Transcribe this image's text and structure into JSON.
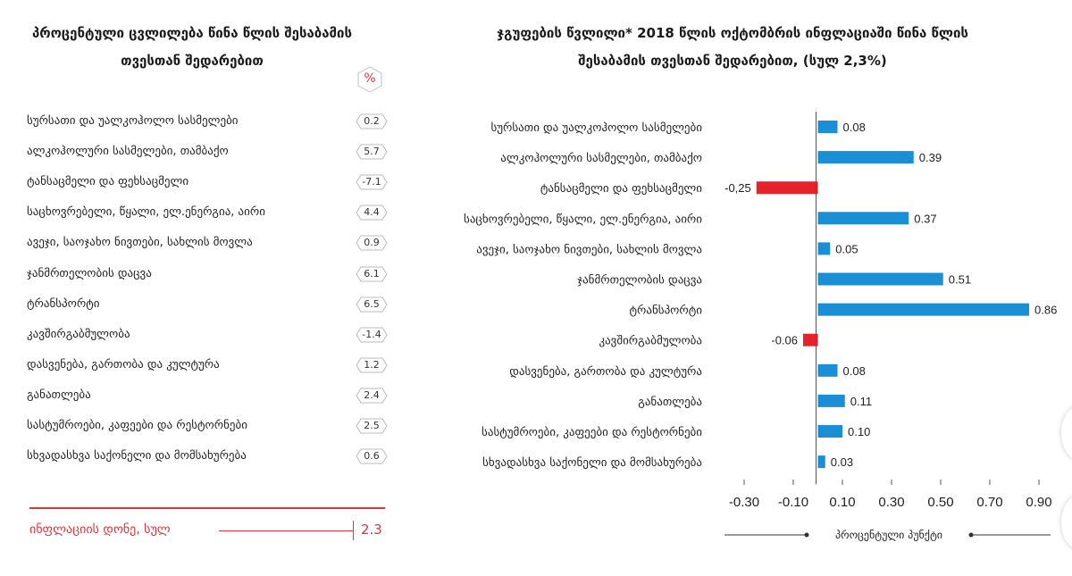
{
  "left_panel": {
    "title": "პროცენტული ცვლილება წინა წლის შესაბამის თვესთან შედარებით",
    "unit_badge": "%",
    "rows": [
      {
        "label": "სურსათი და უალკოჰოლო სასმელები",
        "value": "0.2"
      },
      {
        "label": "ალკოჰოლური სასმელები, თამბაქო",
        "value": "5.7"
      },
      {
        "label": "ტანსაცმელი და ფეხსაცმელი",
        "value": "-7.1"
      },
      {
        "label": "საცხოვრებელი, წყალი, ელ.ენერგია, აირი",
        "value": "4.4"
      },
      {
        "label": "ავეჯი, საოჯახო ნივთები, სახლის მოვლა",
        "value": "0.9"
      },
      {
        "label": "ჯანმრთელობის დაცვა",
        "value": "6.1"
      },
      {
        "label": "ტრანსპორტი",
        "value": "6.5"
      },
      {
        "label": "კავშირგაბმულობა",
        "value": "-1.4"
      },
      {
        "label": "დასვენება, გართობა და კულტურა",
        "value": "1.2"
      },
      {
        "label": "განათლება",
        "value": "2.4"
      },
      {
        "label": "სასტუმროები, კაფეები და რესტორნები",
        "value": "2.5"
      },
      {
        "label": "სხვადასხვა საქონელი და მომსახურება",
        "value": "0.6"
      }
    ],
    "footer_label": "ინფლაციის დონე, სულ",
    "footer_value": "2.3",
    "accent_color": "#d9363e"
  },
  "chart_data": {
    "type": "bar",
    "orientation": "horizontal",
    "title": "ჯგუფების წვლილი* 2018 წლის ოქტომბრის ინფლაციაში წინა წლის შესაბამის თვესთან შედარებით, (სულ 2,3%)",
    "xlabel": "პროცენტული პუნქტი",
    "categories": [
      "სურსათი და უალკოჰოლო სასმელები",
      "ალკოჰოლური სასმელები, თამბაქო",
      "ტანსაცმელი და ფეხსაცმელი",
      "საცხოვრებელი, წყალი, ელ.ენერგია, აირი",
      "ავეჯი, საოჯახო ნივთები, სახლის მოვლა",
      "ჯანმრთელობის დაცვა",
      "ტრანსპორტი",
      "კავშირგაბმულობა",
      "დასვენება, გართობა და კულტურა",
      "განათლება",
      "სასტუმროები, კაფეები და რესტორნები",
      "სხვადასხვა საქონელი და მომსახურება"
    ],
    "values": [
      0.08,
      0.39,
      -0.25,
      0.37,
      0.05,
      0.51,
      0.86,
      -0.06,
      0.08,
      0.11,
      0.1,
      0.03
    ],
    "data_labels": [
      "0.08",
      "0.39",
      "-0,25",
      "0.37",
      "0.05",
      "0.51",
      "0.86",
      "-0.06",
      "0.08",
      "0.11",
      "0.10",
      "0.03"
    ],
    "xticks": [
      -0.3,
      -0.1,
      0.1,
      0.3,
      0.5,
      0.7,
      0.9
    ],
    "xtick_labels": [
      "-0.30",
      "-0.10",
      "0.10",
      "0.30",
      "0.50",
      "0.70",
      "0.90"
    ],
    "xlim": [
      -0.33,
      0.92
    ],
    "grid": false,
    "positive_color": "#1a8fd6",
    "negative_color": "#e4232b"
  }
}
